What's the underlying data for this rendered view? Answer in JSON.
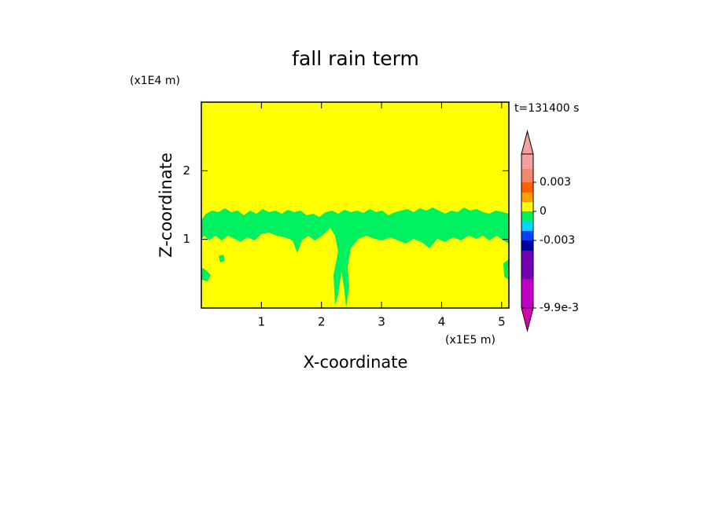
{
  "chart_data": {
    "type": "contour",
    "title": "fall rain term",
    "x_label": "X-coordinate",
    "y_label": "Z-coordinate",
    "x_unit": "(x1E5 m)",
    "y_unit": "(x1E4 m)",
    "time_label": "t=131400 s",
    "xlim": [
      0,
      5.12
    ],
    "ylim": [
      0,
      3
    ],
    "xticks": [
      1,
      2,
      3,
      4,
      5
    ],
    "yticks": [
      1,
      2
    ],
    "background_color": "#ffff00",
    "field_color": "#00f060",
    "colorbar": {
      "colors": [
        "#f4a0a0",
        "#f08a6a",
        "#ff6000",
        "#ffa000",
        "#ffff00",
        "#00f060",
        "#00d8ff",
        "#0040ff",
        "#0000a0",
        "#7000b0",
        "#c000c0"
      ],
      "top_color": "#f4a0a0",
      "bottom_color": "#d800b0",
      "ticks": [
        0.003,
        0,
        -0.003,
        {
          "value": -0.0099,
          "label": "-9.9e-3"
        }
      ]
    }
  }
}
